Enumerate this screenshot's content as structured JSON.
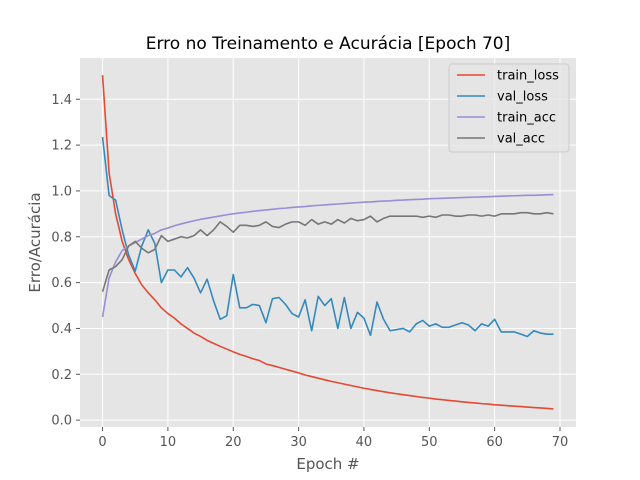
{
  "chart_data": {
    "type": "line",
    "title": "Erro no Treinamento e Acurácia [Epoch 70]",
    "xlabel": "Epoch #",
    "ylabel": "Erro/Acurácia",
    "xlim": [
      -3.45,
      72.45
    ],
    "ylim": [
      -0.03,
      1.58
    ],
    "xticks": [
      0,
      10,
      20,
      30,
      40,
      50,
      60,
      70
    ],
    "yticks": [
      0.0,
      0.2,
      0.4,
      0.6,
      0.8,
      1.0,
      1.2,
      1.4
    ],
    "grid": true,
    "legend_position": "top-right",
    "x": [
      0,
      1,
      2,
      3,
      4,
      5,
      6,
      7,
      8,
      9,
      10,
      11,
      12,
      13,
      14,
      15,
      16,
      17,
      18,
      19,
      20,
      21,
      22,
      23,
      24,
      25,
      26,
      27,
      28,
      29,
      30,
      31,
      32,
      33,
      34,
      35,
      36,
      37,
      38,
      39,
      40,
      41,
      42,
      43,
      44,
      45,
      46,
      47,
      48,
      49,
      50,
      51,
      52,
      53,
      54,
      55,
      56,
      57,
      58,
      59,
      60,
      61,
      62,
      63,
      64,
      65,
      66,
      67,
      68,
      69
    ],
    "series": [
      {
        "name": "train_loss",
        "color": "#E24A33",
        "values": [
          1.505,
          1.08,
          0.9,
          0.78,
          0.7,
          0.64,
          0.59,
          0.555,
          0.525,
          0.49,
          0.465,
          0.445,
          0.42,
          0.4,
          0.38,
          0.365,
          0.348,
          0.335,
          0.322,
          0.31,
          0.298,
          0.287,
          0.278,
          0.268,
          0.26,
          0.245,
          0.238,
          0.23,
          0.222,
          0.214,
          0.206,
          0.197,
          0.19,
          0.183,
          0.176,
          0.169,
          0.163,
          0.157,
          0.151,
          0.145,
          0.139,
          0.134,
          0.129,
          0.124,
          0.119,
          0.115,
          0.111,
          0.107,
          0.103,
          0.099,
          0.096,
          0.092,
          0.089,
          0.086,
          0.083,
          0.08,
          0.077,
          0.075,
          0.072,
          0.07,
          0.067,
          0.065,
          0.063,
          0.061,
          0.059,
          0.057,
          0.055,
          0.053,
          0.051,
          0.049
        ]
      },
      {
        "name": "val_loss",
        "color": "#348ABD",
        "values": [
          1.235,
          0.98,
          0.96,
          0.83,
          0.72,
          0.65,
          0.76,
          0.83,
          0.77,
          0.6,
          0.655,
          0.655,
          0.625,
          0.665,
          0.62,
          0.555,
          0.615,
          0.52,
          0.44,
          0.455,
          0.635,
          0.49,
          0.49,
          0.505,
          0.5,
          0.425,
          0.53,
          0.535,
          0.505,
          0.465,
          0.45,
          0.525,
          0.39,
          0.54,
          0.5,
          0.53,
          0.4,
          0.535,
          0.4,
          0.47,
          0.445,
          0.37,
          0.515,
          0.44,
          0.39,
          0.395,
          0.4,
          0.385,
          0.42,
          0.435,
          0.41,
          0.42,
          0.405,
          0.405,
          0.415,
          0.425,
          0.415,
          0.39,
          0.42,
          0.41,
          0.44,
          0.385,
          0.385,
          0.385,
          0.375,
          0.365,
          0.39,
          0.38,
          0.375,
          0.375
        ]
      },
      {
        "name": "train_acc",
        "color": "#988ED5",
        "values": [
          0.45,
          0.62,
          0.69,
          0.74,
          0.76,
          0.775,
          0.79,
          0.805,
          0.815,
          0.83,
          0.838,
          0.848,
          0.856,
          0.863,
          0.87,
          0.876,
          0.881,
          0.886,
          0.891,
          0.896,
          0.9,
          0.904,
          0.907,
          0.911,
          0.914,
          0.917,
          0.92,
          0.923,
          0.925,
          0.928,
          0.93,
          0.932,
          0.935,
          0.937,
          0.939,
          0.941,
          0.943,
          0.945,
          0.947,
          0.949,
          0.951,
          0.952,
          0.954,
          0.956,
          0.957,
          0.959,
          0.96,
          0.962,
          0.963,
          0.964,
          0.966,
          0.967,
          0.968,
          0.969,
          0.97,
          0.971,
          0.972,
          0.973,
          0.974,
          0.975,
          0.976,
          0.977,
          0.978,
          0.979,
          0.98,
          0.981,
          0.981,
          0.982,
          0.983,
          0.984
        ]
      },
      {
        "name": "val_acc",
        "color": "#777777",
        "values": [
          0.56,
          0.655,
          0.67,
          0.7,
          0.76,
          0.78,
          0.75,
          0.73,
          0.745,
          0.805,
          0.78,
          0.79,
          0.8,
          0.795,
          0.805,
          0.83,
          0.805,
          0.83,
          0.865,
          0.845,
          0.82,
          0.85,
          0.85,
          0.845,
          0.85,
          0.865,
          0.845,
          0.84,
          0.855,
          0.865,
          0.865,
          0.85,
          0.875,
          0.855,
          0.865,
          0.855,
          0.875,
          0.86,
          0.88,
          0.87,
          0.875,
          0.89,
          0.865,
          0.88,
          0.89,
          0.89,
          0.89,
          0.89,
          0.89,
          0.885,
          0.89,
          0.885,
          0.895,
          0.895,
          0.89,
          0.89,
          0.895,
          0.895,
          0.89,
          0.895,
          0.89,
          0.9,
          0.9,
          0.9,
          0.905,
          0.905,
          0.9,
          0.9,
          0.905,
          0.9
        ]
      }
    ]
  }
}
